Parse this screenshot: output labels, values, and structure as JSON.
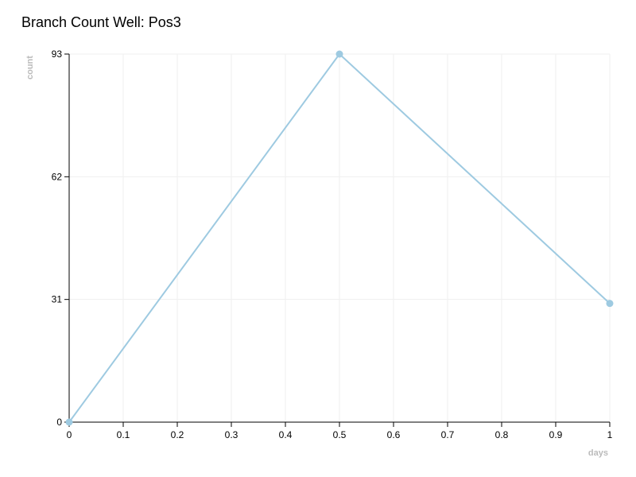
{
  "chart_data": {
    "type": "line",
    "title": "Branch Count Well: Pos3",
    "xlabel": "days",
    "ylabel": "count",
    "xlim": [
      0,
      1
    ],
    "ylim": [
      0,
      93
    ],
    "x_ticks": [
      "0",
      "0.1",
      "0.2",
      "0.3",
      "0.4",
      "0.5",
      "0.6",
      "0.7",
      "0.8",
      "0.9",
      "1"
    ],
    "y_ticks": [
      "0",
      "31",
      "62",
      "93"
    ],
    "grid": true,
    "series": [
      {
        "color": "#9ecae1",
        "x": [
          0,
          0.5,
          1
        ],
        "y": [
          0,
          93,
          30
        ]
      }
    ]
  }
}
